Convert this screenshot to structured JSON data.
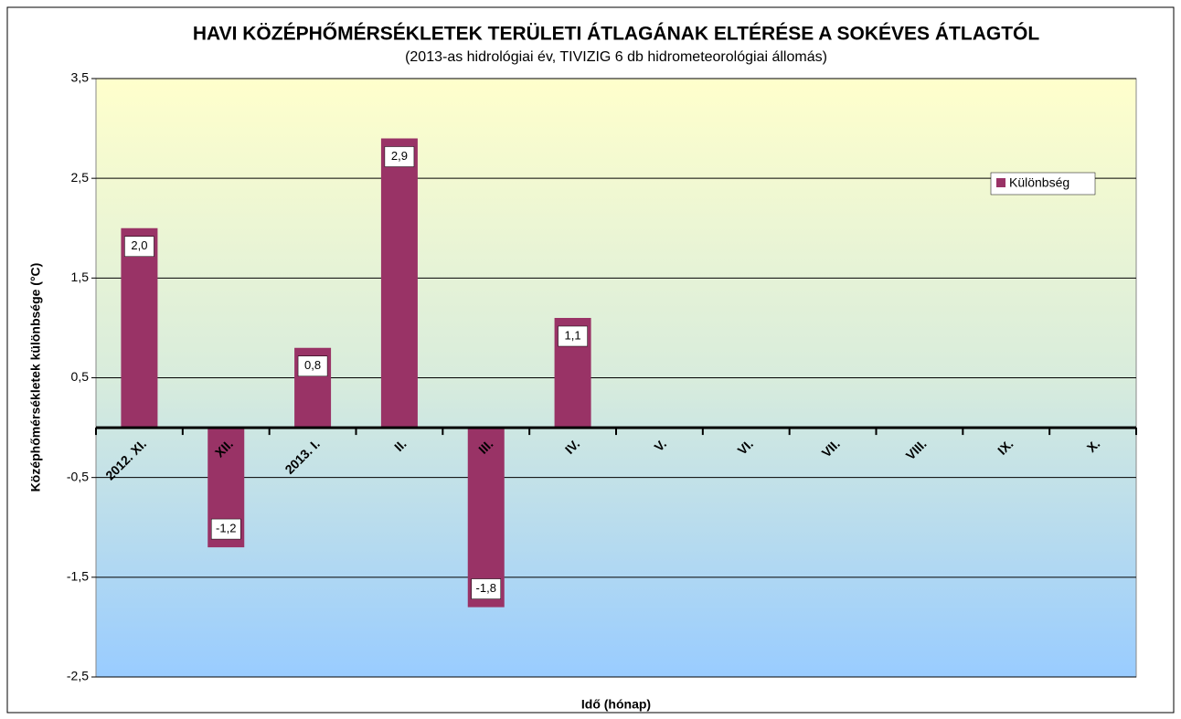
{
  "chart_data": {
    "type": "bar",
    "title": "HAVI KÖZÉPHŐMÉRSÉKLETEK TERÜLETI ÁTLAGÁNAK ELTÉRÉSE A SOKÉVES ÁTLAGTÓL",
    "subtitle": "(2013-as hidrológiai év, TIVIZIG 6 db hidrometeorológiai állomás)",
    "x_label": "Idő (hónap)",
    "y_label": "Középhőmérsékletek különbsége (°C)",
    "categories": [
      "2012. XI.",
      "XII.",
      "2013. I.",
      "II.",
      "III.",
      "IV.",
      "V.",
      "VI.",
      "VII.",
      "VIII.",
      "IX.",
      "X."
    ],
    "series": [
      {
        "name": "Különbség",
        "color": "#993366",
        "values": [
          2.0,
          -1.2,
          0.8,
          2.9,
          -1.8,
          1.1,
          null,
          null,
          null,
          null,
          null,
          null
        ],
        "value_labels": [
          "2,0",
          "-1,2",
          "0,8",
          "2,9",
          "-1,8",
          "1,1",
          null,
          null,
          null,
          null,
          null,
          null
        ]
      }
    ],
    "ylim": [
      -2.5,
      3.5
    ],
    "yticks": [
      {
        "value": -2.5,
        "label": "-2,5"
      },
      {
        "value": -1.5,
        "label": "-1,5"
      },
      {
        "value": -0.5,
        "label": "-0,5"
      },
      {
        "value": 0.5,
        "label": "0,5"
      },
      {
        "value": 1.5,
        "label": "1,5"
      },
      {
        "value": 2.5,
        "label": "2,5"
      },
      {
        "value": 3.5,
        "label": "3,5"
      }
    ],
    "grid": true,
    "legend": "right"
  }
}
